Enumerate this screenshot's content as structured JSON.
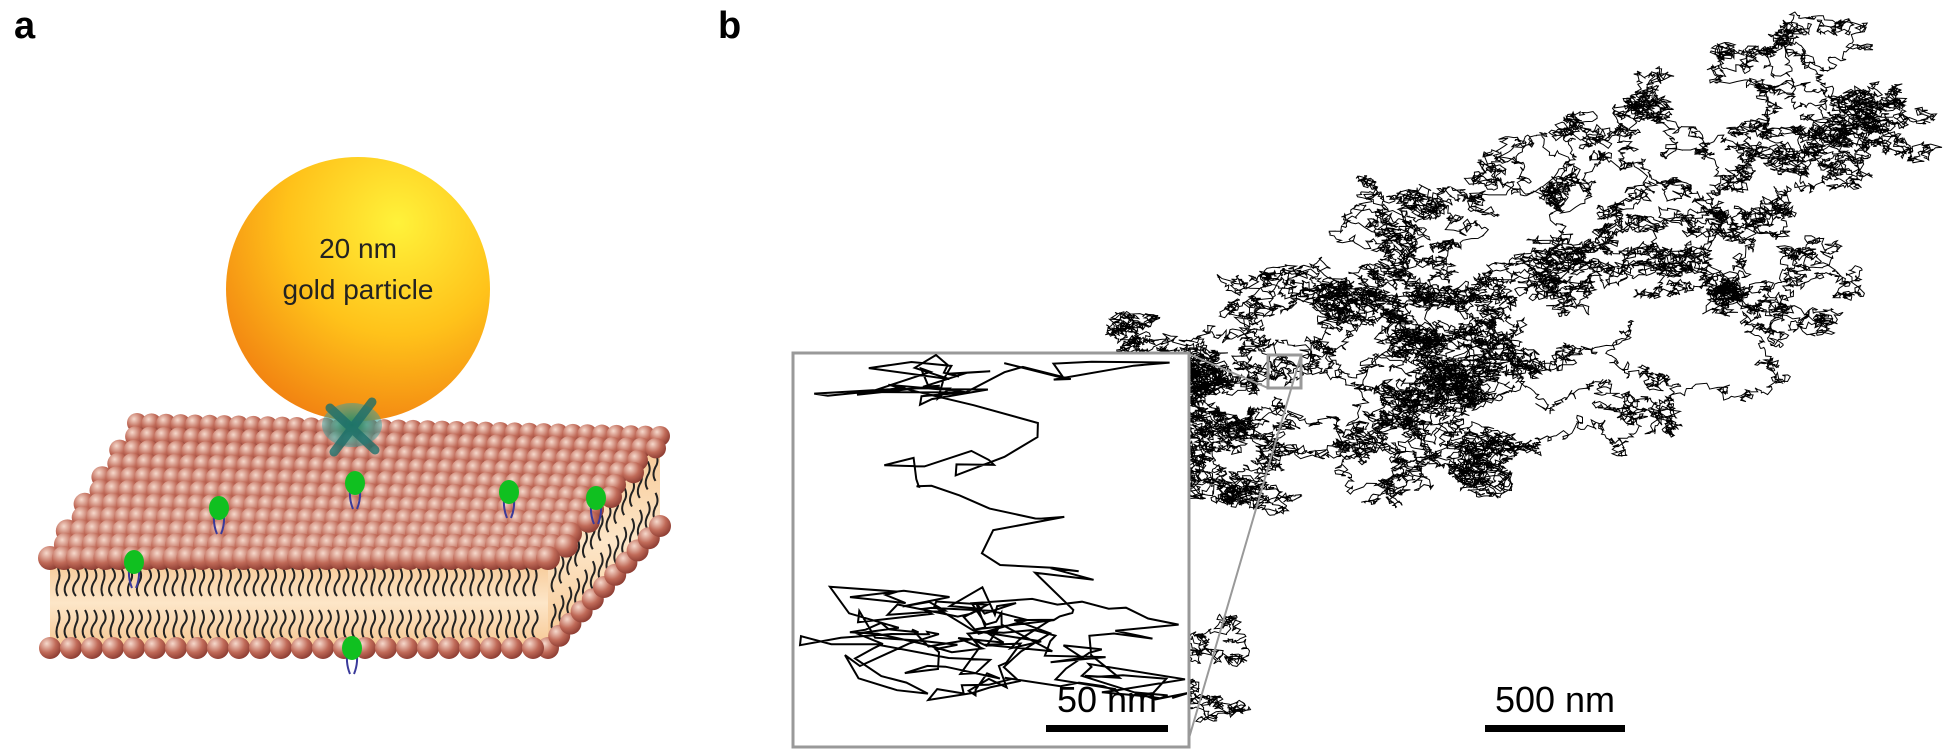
{
  "panel_a": {
    "label": "a",
    "particle_label": [
      "20 nm",
      "gold particle"
    ]
  },
  "panel_b": {
    "label": "b",
    "inset_scale_bar": "50 nm",
    "scale_bar": "500 nm"
  }
}
